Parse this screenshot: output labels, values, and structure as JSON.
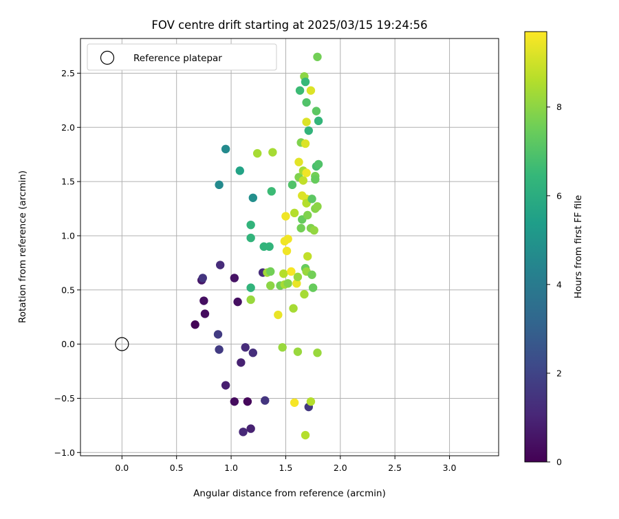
{
  "chart_data": {
    "type": "scatter",
    "title": "FOV centre drift starting at 2025/03/15 19:24:56",
    "xlabel": "Angular distance from reference (arcmin)",
    "ylabel": "Rotation from reference (arcmin)",
    "xlim": [
      -0.38,
      3.45
    ],
    "ylim": [
      -1.03,
      2.82
    ],
    "xticks": [
      0.0,
      0.5,
      1.0,
      1.5,
      2.0,
      2.5,
      3.0
    ],
    "yticks": [
      -1.0,
      -0.5,
      0.0,
      0.5,
      1.0,
      1.5,
      2.0,
      2.5
    ],
    "xtick_labels": [
      "0.0",
      "0.5",
      "1.0",
      "1.5",
      "2.0",
      "2.5",
      "3.0"
    ],
    "ytick_labels": [
      "−1.0",
      "−0.5",
      "0.0",
      "0.5",
      "1.0",
      "1.5",
      "2.0",
      "2.5"
    ],
    "grid": true,
    "legend": {
      "placement": "top-left",
      "entries": [
        "Reference platepar"
      ]
    },
    "reference_point": {
      "x": 0.0,
      "y": 0.0,
      "label": "Reference platepar"
    },
    "colorbar": {
      "label": "Hours from first FF file",
      "colormap": "viridis",
      "range": [
        0,
        9.7
      ],
      "ticks": [
        0,
        2,
        4,
        6,
        8
      ],
      "tick_labels": [
        "0",
        "2",
        "4",
        "6",
        "8"
      ]
    },
    "points": [
      {
        "x": 0.67,
        "y": 0.18,
        "t": 0.1
      },
      {
        "x": 0.73,
        "y": 0.59,
        "t": 0.6
      },
      {
        "x": 0.74,
        "y": 0.61,
        "t": 1.5
      },
      {
        "x": 0.75,
        "y": 0.4,
        "t": 0.4
      },
      {
        "x": 0.76,
        "y": 0.28,
        "t": 0.3
      },
      {
        "x": 0.88,
        "y": 0.09,
        "t": 1.7
      },
      {
        "x": 0.9,
        "y": 0.73,
        "t": 1.2
      },
      {
        "x": 0.89,
        "y": -0.05,
        "t": 1.7
      },
      {
        "x": 0.95,
        "y": -0.38,
        "t": 0.8
      },
      {
        "x": 1.03,
        "y": 0.61,
        "t": 0.5
      },
      {
        "x": 1.06,
        "y": 0.39,
        "t": 0.4
      },
      {
        "x": 1.03,
        "y": -0.53,
        "t": 0.3
      },
      {
        "x": 1.09,
        "y": -0.17,
        "t": 0.9
      },
      {
        "x": 1.13,
        "y": -0.03,
        "t": 1.2
      },
      {
        "x": 1.15,
        "y": -0.53,
        "t": 0.2
      },
      {
        "x": 1.2,
        "y": -0.08,
        "t": 1.3
      },
      {
        "x": 1.11,
        "y": -0.81,
        "t": 1.1
      },
      {
        "x": 1.18,
        "y": -0.78,
        "t": 0.9
      },
      {
        "x": 1.29,
        "y": 0.66,
        "t": 1.2
      },
      {
        "x": 1.31,
        "y": -0.52,
        "t": 1.5
      },
      {
        "x": 1.71,
        "y": -0.58,
        "t": 1.6
      },
      {
        "x": 0.95,
        "y": 1.8,
        "t": 4.6
      },
      {
        "x": 0.89,
        "y": 1.47,
        "t": 4.6
      },
      {
        "x": 1.08,
        "y": 1.6,
        "t": 5.6
      },
      {
        "x": 1.2,
        "y": 1.35,
        "t": 4.8
      },
      {
        "x": 1.18,
        "y": 1.1,
        "t": 6.3
      },
      {
        "x": 1.18,
        "y": 0.98,
        "t": 6.3
      },
      {
        "x": 1.18,
        "y": 0.52,
        "t": 6.3
      },
      {
        "x": 1.18,
        "y": 0.41,
        "t": 8.2
      },
      {
        "x": 1.24,
        "y": 1.76,
        "t": 8.4
      },
      {
        "x": 1.38,
        "y": 1.77,
        "t": 8.4
      },
      {
        "x": 1.37,
        "y": 1.41,
        "t": 6.6
      },
      {
        "x": 1.3,
        "y": 0.9,
        "t": 6.3
      },
      {
        "x": 1.35,
        "y": 0.9,
        "t": 6.3
      },
      {
        "x": 1.33,
        "y": 0.66,
        "t": 8.3
      },
      {
        "x": 1.36,
        "y": 0.67,
        "t": 7.6
      },
      {
        "x": 1.36,
        "y": 0.54,
        "t": 8.0
      },
      {
        "x": 1.45,
        "y": 0.54,
        "t": 7.6
      },
      {
        "x": 1.49,
        "y": 0.55,
        "t": 8.4
      },
      {
        "x": 1.52,
        "y": 0.56,
        "t": 7.9
      },
      {
        "x": 1.47,
        "y": -0.03,
        "t": 8.2
      },
      {
        "x": 1.43,
        "y": 0.27,
        "t": 9.4
      },
      {
        "x": 1.48,
        "y": 0.65,
        "t": 8.6
      },
      {
        "x": 1.5,
        "y": 1.18,
        "t": 9.5
      },
      {
        "x": 1.49,
        "y": 0.95,
        "t": 9.5
      },
      {
        "x": 1.52,
        "y": 0.97,
        "t": 9.5
      },
      {
        "x": 1.51,
        "y": 0.86,
        "t": 9.5
      },
      {
        "x": 1.55,
        "y": 0.67,
        "t": 9.6
      },
      {
        "x": 1.57,
        "y": 0.33,
        "t": 8.4
      },
      {
        "x": 1.56,
        "y": 1.47,
        "t": 7.0
      },
      {
        "x": 1.58,
        "y": 1.21,
        "t": 8.6
      },
      {
        "x": 1.6,
        "y": 0.56,
        "t": 9.4
      },
      {
        "x": 1.61,
        "y": 0.62,
        "t": 8.2
      },
      {
        "x": 1.61,
        "y": -0.07,
        "t": 8.2
      },
      {
        "x": 1.58,
        "y": -0.54,
        "t": 9.6
      },
      {
        "x": 1.62,
        "y": 1.68,
        "t": 9.3
      },
      {
        "x": 1.62,
        "y": 1.54,
        "t": 7.8
      },
      {
        "x": 1.63,
        "y": 2.34,
        "t": 6.6
      },
      {
        "x": 1.64,
        "y": 1.86,
        "t": 7.8
      },
      {
        "x": 1.64,
        "y": 1.07,
        "t": 7.6
      },
      {
        "x": 1.65,
        "y": 1.15,
        "t": 7.4
      },
      {
        "x": 1.65,
        "y": 1.37,
        "t": 9.2
      },
      {
        "x": 1.66,
        "y": 1.6,
        "t": 8.4
      },
      {
        "x": 1.66,
        "y": 1.51,
        "t": 8.8
      },
      {
        "x": 1.67,
        "y": 0.46,
        "t": 8.4
      },
      {
        "x": 1.68,
        "y": 0.7,
        "t": 7.4
      },
      {
        "x": 1.67,
        "y": 2.47,
        "t": 8.0
      },
      {
        "x": 1.68,
        "y": 2.42,
        "t": 6.5
      },
      {
        "x": 1.68,
        "y": 1.85,
        "t": 9.2
      },
      {
        "x": 1.69,
        "y": 2.23,
        "t": 7.0
      },
      {
        "x": 1.69,
        "y": 2.05,
        "t": 9.2
      },
      {
        "x": 1.69,
        "y": 1.58,
        "t": 9.5
      },
      {
        "x": 1.69,
        "y": 1.34,
        "t": 9.2
      },
      {
        "x": 1.69,
        "y": 1.3,
        "t": 8.6
      },
      {
        "x": 1.7,
        "y": 1.19,
        "t": 7.8
      },
      {
        "x": 1.7,
        "y": 0.81,
        "t": 8.8
      },
      {
        "x": 1.69,
        "y": 0.67,
        "t": 8.2
      },
      {
        "x": 1.68,
        "y": -0.84,
        "t": 8.6
      },
      {
        "x": 1.71,
        "y": 1.97,
        "t": 6.3
      },
      {
        "x": 1.73,
        "y": -0.53,
        "t": 8.6
      },
      {
        "x": 1.73,
        "y": 2.34,
        "t": 9.2
      },
      {
        "x": 1.74,
        "y": 1.34,
        "t": 7.2
      },
      {
        "x": 1.73,
        "y": 1.07,
        "t": 7.8
      },
      {
        "x": 1.74,
        "y": 0.64,
        "t": 7.6
      },
      {
        "x": 1.75,
        "y": 0.52,
        "t": 7.4
      },
      {
        "x": 1.76,
        "y": 1.05,
        "t": 8.1
      },
      {
        "x": 1.77,
        "y": 1.25,
        "t": 7.9
      },
      {
        "x": 1.77,
        "y": 1.55,
        "t": 7.6
      },
      {
        "x": 1.77,
        "y": 1.52,
        "t": 7.4
      },
      {
        "x": 1.78,
        "y": 1.64,
        "t": 6.8
      },
      {
        "x": 1.78,
        "y": 2.15,
        "t": 7.2
      },
      {
        "x": 1.79,
        "y": 2.65,
        "t": 7.6
      },
      {
        "x": 1.79,
        "y": 1.27,
        "t": 8.0
      },
      {
        "x": 1.79,
        "y": -0.08,
        "t": 8.2
      },
      {
        "x": 1.8,
        "y": 2.06,
        "t": 6.4
      },
      {
        "x": 1.8,
        "y": 1.66,
        "t": 7.0
      }
    ]
  }
}
